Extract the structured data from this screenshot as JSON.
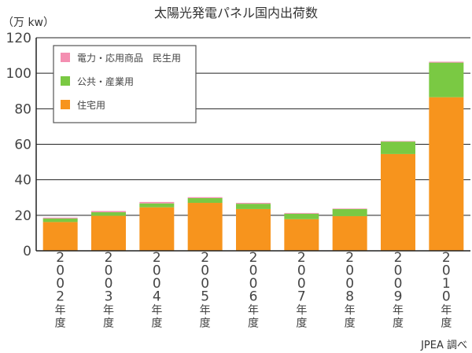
{
  "chart_data": {
    "type": "bar",
    "stacked": true,
    "title": "太陽光発電パネル国内出荷数",
    "ylabel": "（万 kw）",
    "source": "JPEA 調べ",
    "ylim": [
      0,
      120
    ],
    "yticks": [
      0,
      20,
      40,
      60,
      80,
      100,
      120
    ],
    "grid": true,
    "legend_position": "top-left",
    "categories": [
      [
        "2",
        "0",
        "0",
        "2",
        "年",
        "度"
      ],
      [
        "2",
        "0",
        "0",
        "3",
        "年",
        "度"
      ],
      [
        "2",
        "0",
        "0",
        "4",
        "年",
        "度"
      ],
      [
        "2",
        "0",
        "0",
        "5",
        "年",
        "度"
      ],
      [
        "2",
        "0",
        "0",
        "6",
        "年",
        "度"
      ],
      [
        "2",
        "0",
        "0",
        "7",
        "年",
        "度"
      ],
      [
        "2",
        "0",
        "0",
        "8",
        "年",
        "度"
      ],
      [
        "2",
        "0",
        "0",
        "9",
        "年",
        "度"
      ],
      [
        "2",
        "0",
        "1",
        "0",
        "年",
        "度"
      ]
    ],
    "series": [
      {
        "name": "住宅用",
        "color": "#f7941d",
        "values": [
          16.2,
          19.7,
          24.5,
          27.0,
          23.5,
          17.8,
          19.5,
          54.5,
          86.5
        ]
      },
      {
        "name": "公共・産業用",
        "color": "#7ac943",
        "values": [
          2.0,
          2.0,
          2.2,
          2.7,
          3.0,
          3.1,
          4.0,
          7.0,
          19.5
        ]
      },
      {
        "name": "電力・応用商品　民生用",
        "color": "#f48fb1",
        "values": [
          0.5,
          0.7,
          0.8,
          0.5,
          0.5,
          0.4,
          0.3,
          0.3,
          0.5
        ]
      }
    ],
    "legend_order": [
      "電力・応用商品　民生用",
      "公共・産業用",
      "住宅用"
    ]
  }
}
